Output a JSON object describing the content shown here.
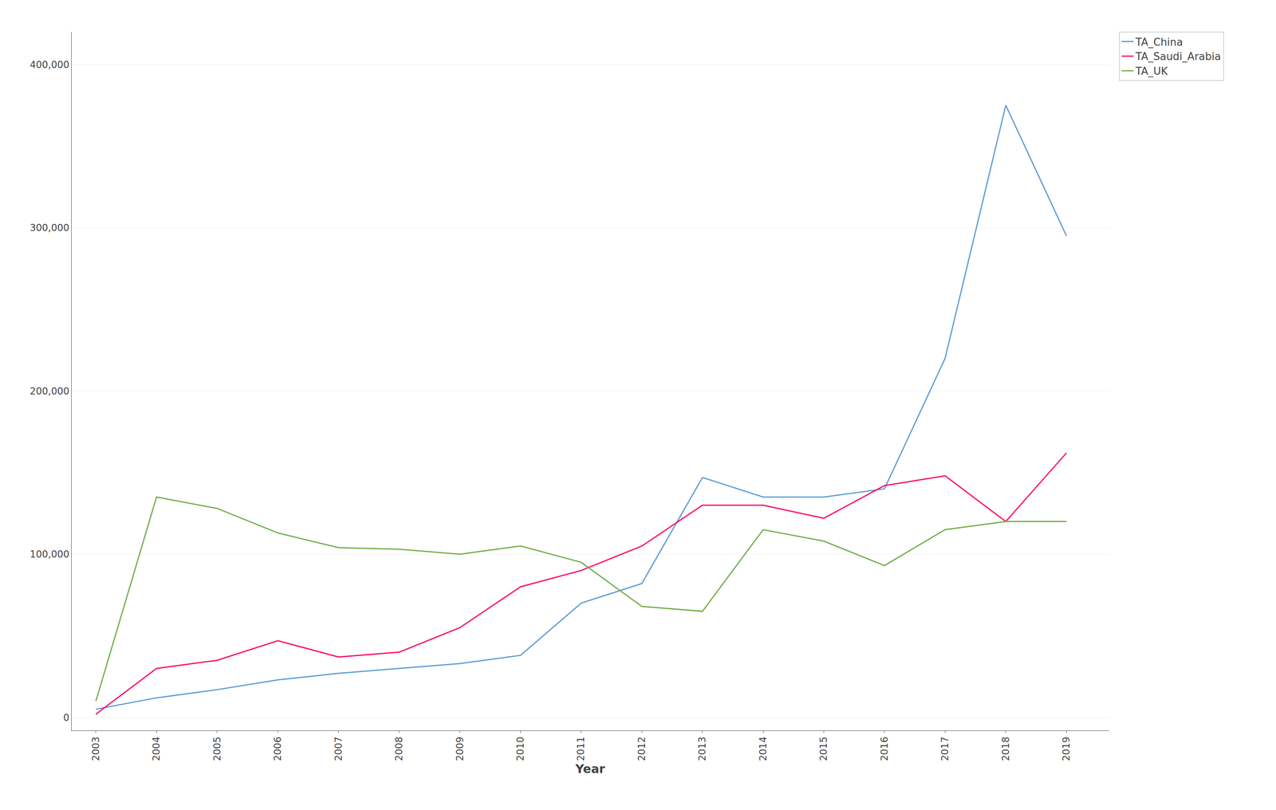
{
  "chart_data": {
    "type": "line",
    "xlabel": "Year",
    "x": [
      2003,
      2004,
      2005,
      2006,
      2007,
      2008,
      2009,
      2010,
      2011,
      2012,
      2013,
      2014,
      2015,
      2016,
      2017,
      2018,
      2019
    ],
    "series": [
      {
        "name": "TA_China",
        "color": "#5b9bd5",
        "values": [
          5000,
          12000,
          17000,
          23000,
          27000,
          30000,
          33000,
          38000,
          70000,
          82000,
          147000,
          135000,
          135000,
          140000,
          220000,
          375000,
          295000
        ]
      },
      {
        "name": "TA_Saudi_Arabia",
        "color": "#ff0066",
        "values": [
          2000,
          30000,
          35000,
          47000,
          37000,
          40000,
          55000,
          80000,
          90000,
          105000,
          130000,
          130000,
          122000,
          142000,
          148000,
          120000,
          162000
        ]
      },
      {
        "name": "TA_UK",
        "color": "#70ad47",
        "values": [
          10000,
          135000,
          128000,
          113000,
          104000,
          103000,
          100000,
          105000,
          95000,
          68000,
          65000,
          115000,
          108000,
          93000,
          115000,
          120000,
          120000
        ]
      }
    ],
    "xlim": [
      2002.6,
      2019.7
    ],
    "xticks": [
      2003,
      2004,
      2005,
      2006,
      2007,
      2008,
      2009,
      2010,
      2011,
      2012,
      2013,
      2014,
      2015,
      2016,
      2017,
      2018,
      2019
    ],
    "ylim": [
      -8000,
      420000
    ],
    "yticks": [
      0,
      {
        "value": 100000,
        "label": "100,000"
      },
      {
        "value": 200000,
        "label": "200,000"
      },
      {
        "value": 300000,
        "label": "300,000"
      },
      {
        "value": 400000,
        "label": "400,000"
      }
    ],
    "grid": "y",
    "legend": "upper right"
  }
}
